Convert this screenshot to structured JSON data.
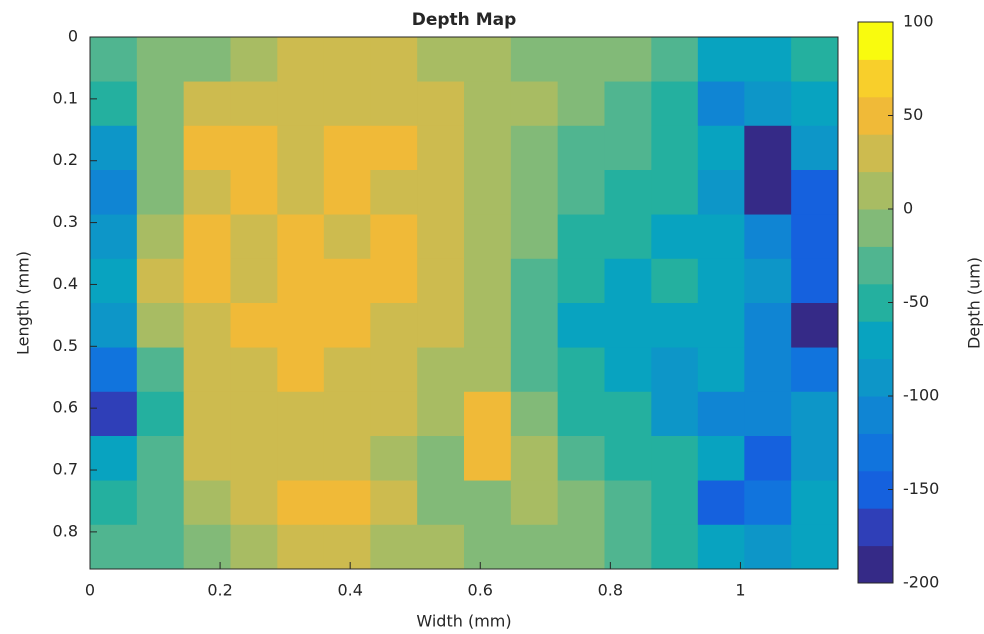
{
  "chart_data": {
    "type": "heatmap",
    "title": "Depth Map",
    "x_label": "Width (mm)",
    "y_label": "Length (mm)",
    "xlim": [
      0,
      1.15
    ],
    "ylim": [
      0,
      0.86
    ],
    "xticks": [
      0,
      0.2,
      0.4,
      0.6,
      0.8,
      1
    ],
    "yticks": [
      0,
      0.1,
      0.2,
      0.3,
      0.4,
      0.5,
      0.6,
      0.7,
      0.8
    ],
    "y_reversed": true,
    "x": [
      0.036,
      0.108,
      0.18,
      0.252,
      0.324,
      0.395,
      0.467,
      0.539,
      0.611,
      0.683,
      0.755,
      0.827,
      0.899,
      0.97,
      1.042,
      1.114
    ],
    "y": [
      0.036,
      0.108,
      0.179,
      0.251,
      0.323,
      0.394,
      0.466,
      0.538,
      0.609,
      0.681,
      0.753,
      0.824
    ],
    "z": [
      [
        -30,
        -20,
        -10,
        10,
        20,
        30,
        20,
        10,
        0,
        -10,
        -20,
        -10,
        -40,
        -70,
        -80,
        -60
      ],
      [
        -60,
        -10,
        30,
        30,
        30,
        30,
        30,
        20,
        10,
        0,
        -20,
        -30,
        -60,
        -110,
        -90,
        -70
      ],
      [
        -90,
        -10,
        40,
        40,
        30,
        40,
        50,
        20,
        10,
        -10,
        -30,
        -40,
        -50,
        -80,
        -200,
        -100
      ],
      [
        -110,
        -20,
        30,
        40,
        30,
        40,
        30,
        30,
        10,
        -20,
        -40,
        -50,
        -60,
        -90,
        -200,
        -150
      ],
      [
        -100,
        0,
        40,
        30,
        40,
        30,
        40,
        30,
        10,
        -20,
        -50,
        -60,
        -70,
        -80,
        -120,
        -160
      ],
      [
        -70,
        30,
        40,
        30,
        40,
        40,
        40,
        30,
        10,
        -40,
        -60,
        -80,
        -60,
        -80,
        -100,
        -150
      ],
      [
        -100,
        10,
        30,
        40,
        50,
        40,
        30,
        20,
        0,
        -40,
        -70,
        -70,
        -80,
        -70,
        -110,
        -190
      ],
      [
        -140,
        -40,
        30,
        30,
        40,
        30,
        20,
        10,
        0,
        -30,
        -60,
        -80,
        -100,
        -80,
        -110,
        -130
      ],
      [
        -170,
        -60,
        20,
        30,
        30,
        20,
        20,
        10,
        40,
        -10,
        -50,
        -60,
        -90,
        -110,
        -120,
        -100
      ],
      [
        -80,
        -30,
        20,
        20,
        30,
        20,
        10,
        -20,
        40,
        0,
        -30,
        -50,
        -60,
        -80,
        -150,
        -90
      ],
      [
        -60,
        -30,
        0,
        30,
        40,
        40,
        30,
        -20,
        -10,
        0,
        -20,
        -40,
        -50,
        -150,
        -140,
        -80
      ],
      [
        -40,
        -40,
        -10,
        10,
        30,
        30,
        10,
        0,
        -20,
        -20,
        -10,
        -30,
        -50,
        -80,
        -100,
        -70
      ]
    ],
    "colorbar": {
      "label": "Depth (um)",
      "lim": [
        -200,
        100
      ],
      "ticks": [
        -200,
        -150,
        -100,
        -50,
        0,
        50,
        100
      ],
      "colors": [
        "#352a87",
        "#2f3fb8",
        "#1561de",
        "#1174dd",
        "#1085d3",
        "#0d96c8",
        "#08a3c0",
        "#24b09f",
        "#50b590",
        "#82ba78",
        "#a8bc63",
        "#cdbb4f",
        "#f0ba38",
        "#f8cf2b",
        "#f9fb0e"
      ]
    }
  }
}
